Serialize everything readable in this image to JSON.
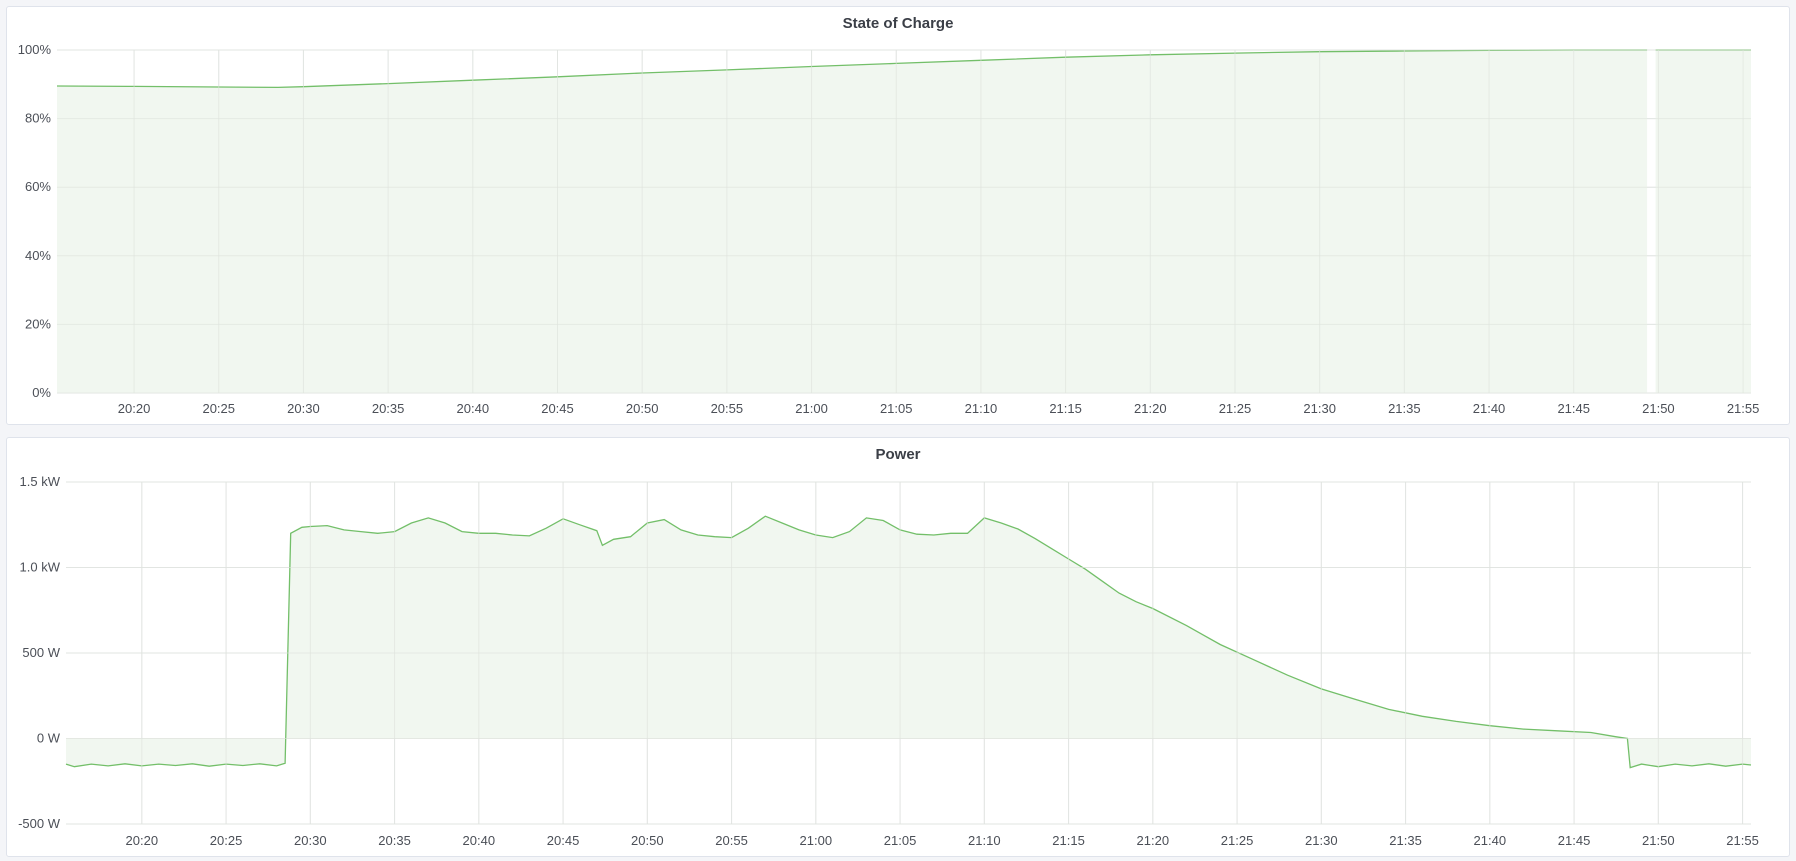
{
  "chart_data": [
    {
      "type": "area",
      "title": "State of Charge",
      "xlabel": "",
      "ylabel": "",
      "x_ticks": [
        "20:20",
        "20:25",
        "20:30",
        "20:35",
        "20:40",
        "20:45",
        "20:50",
        "20:55",
        "21:00",
        "21:05",
        "21:10",
        "21:15",
        "21:20",
        "21:25",
        "21:30",
        "21:35",
        "21:40",
        "21:45",
        "21:50",
        "21:55"
      ],
      "y_ticks": [
        {
          "v": 0,
          "label": "0%"
        },
        {
          "v": 20,
          "label": "20%"
        },
        {
          "v": 40,
          "label": "40%"
        },
        {
          "v": 60,
          "label": "60%"
        },
        {
          "v": 80,
          "label": "80%"
        },
        {
          "v": 100,
          "label": "100%"
        }
      ],
      "xlim": [
        "20:15:27",
        "21:55:28"
      ],
      "ylim": [
        0,
        100
      ],
      "grid": true,
      "color": "#73bf69",
      "fill": "#f0f6ee",
      "series": [
        {
          "points": [
            [
              "20:15:27",
              89.5
            ],
            [
              "20:20:00",
              89.4
            ],
            [
              "20:25:00",
              89.2
            ],
            [
              "20:28:30",
              89.1
            ],
            [
              "20:30:00",
              89.3
            ],
            [
              "20:35:00",
              90.2
            ],
            [
              "20:40:00",
              91.2
            ],
            [
              "20:45:00",
              92.2
            ],
            [
              "20:50:00",
              93.3
            ],
            [
              "20:55:00",
              94.2
            ],
            [
              "21:00:00",
              95.2
            ],
            [
              "21:05:00",
              96.1
            ],
            [
              "21:10:00",
              97.0
            ],
            [
              "21:15:00",
              97.9
            ],
            [
              "21:20:00",
              98.6
            ],
            [
              "21:25:00",
              99.1
            ],
            [
              "21:30:00",
              99.5
            ],
            [
              "21:35:00",
              99.7
            ],
            [
              "21:40:00",
              99.9
            ],
            [
              "21:45:00",
              100
            ],
            [
              "21:49:20",
              100
            ],
            null,
            [
              "21:49:50",
              100
            ],
            [
              "21:55:28",
              100
            ]
          ]
        }
      ]
    },
    {
      "type": "area",
      "title": "Power",
      "xlabel": "",
      "ylabel": "",
      "x_ticks": [
        "20:20",
        "20:25",
        "20:30",
        "20:35",
        "20:40",
        "20:45",
        "20:50",
        "20:55",
        "21:00",
        "21:05",
        "21:10",
        "21:15",
        "21:20",
        "21:25",
        "21:30",
        "21:35",
        "21:40",
        "21:45",
        "21:50",
        "21:55"
      ],
      "y_ticks": [
        {
          "v": -500,
          "label": "-500 W"
        },
        {
          "v": 0,
          "label": "0 W"
        },
        {
          "v": 500,
          "label": "500 W"
        },
        {
          "v": 1000,
          "label": "1.0 kW"
        },
        {
          "v": 1500,
          "label": "1.5 kW"
        }
      ],
      "xlim": [
        "20:15:30",
        "21:55:30"
      ],
      "ylim": [
        -500,
        1500
      ],
      "grid": true,
      "color": "#73bf69",
      "fill": "#f0f6ee",
      "series": [
        {
          "points": [
            [
              "20:15:30",
              -150
            ],
            [
              "20:16:00",
              -165
            ],
            [
              "20:17:00",
              -150
            ],
            [
              "20:18:00",
              -160
            ],
            [
              "20:19:00",
              -148
            ],
            [
              "20:20:00",
              -160
            ],
            [
              "20:21:00",
              -150
            ],
            [
              "20:22:00",
              -158
            ],
            [
              "20:23:00",
              -148
            ],
            [
              "20:24:00",
              -162
            ],
            [
              "20:25:00",
              -150
            ],
            [
              "20:26:00",
              -158
            ],
            [
              "20:27:00",
              -148
            ],
            [
              "20:28:00",
              -160
            ],
            [
              "20:28:30",
              -145
            ],
            [
              "20:28:50",
              1200
            ],
            [
              "20:29:30",
              1235
            ],
            [
              "20:30:00",
              1240
            ],
            [
              "20:31:00",
              1245
            ],
            [
              "20:32:00",
              1220
            ],
            [
              "20:33:00",
              1210
            ],
            [
              "20:34:00",
              1200
            ],
            [
              "20:35:00",
              1210
            ],
            [
              "20:36:00",
              1260
            ],
            [
              "20:37:00",
              1290
            ],
            [
              "20:38:00",
              1260
            ],
            [
              "20:39:00",
              1210
            ],
            [
              "20:40:00",
              1200
            ],
            [
              "20:41:00",
              1200
            ],
            [
              "20:42:00",
              1190
            ],
            [
              "20:43:00",
              1185
            ],
            [
              "20:44:00",
              1230
            ],
            [
              "20:45:00",
              1285
            ],
            [
              "20:46:00",
              1250
            ],
            [
              "20:47:00",
              1215
            ],
            [
              "20:47:20",
              1130
            ],
            [
              "20:48:00",
              1165
            ],
            [
              "20:49:00",
              1180
            ],
            [
              "20:50:00",
              1260
            ],
            [
              "20:51:00",
              1280
            ],
            [
              "20:52:00",
              1220
            ],
            [
              "20:53:00",
              1190
            ],
            [
              "20:54:00",
              1180
            ],
            [
              "20:55:00",
              1175
            ],
            [
              "20:56:00",
              1230
            ],
            [
              "20:57:00",
              1300
            ],
            [
              "20:58:00",
              1260
            ],
            [
              "20:59:00",
              1220
            ],
            [
              "21:00:00",
              1190
            ],
            [
              "21:01:00",
              1175
            ],
            [
              "21:02:00",
              1210
            ],
            [
              "21:03:00",
              1290
            ],
            [
              "21:04:00",
              1275
            ],
            [
              "21:05:00",
              1220
            ],
            [
              "21:06:00",
              1195
            ],
            [
              "21:07:00",
              1190
            ],
            [
              "21:08:00",
              1200
            ],
            [
              "21:09:00",
              1200
            ],
            [
              "21:10:00",
              1290
            ],
            [
              "21:11:00",
              1260
            ],
            [
              "21:12:00",
              1225
            ],
            [
              "21:13:00",
              1170
            ],
            [
              "21:14:00",
              1110
            ],
            [
              "21:15:00",
              1050
            ],
            [
              "21:16:00",
              990
            ],
            [
              "21:17:00",
              920
            ],
            [
              "21:18:00",
              850
            ],
            [
              "21:19:00",
              800
            ],
            [
              "21:20:00",
              760
            ],
            [
              "21:22:00",
              660
            ],
            [
              "21:24:00",
              550
            ],
            [
              "21:26:00",
              460
            ],
            [
              "21:28:00",
              370
            ],
            [
              "21:30:00",
              290
            ],
            [
              "21:32:00",
              230
            ],
            [
              "21:34:00",
              170
            ],
            [
              "21:36:00",
              130
            ],
            [
              "21:38:00",
              100
            ],
            [
              "21:40:00",
              75
            ],
            [
              "21:42:00",
              55
            ],
            [
              "21:44:00",
              45
            ],
            [
              "21:46:00",
              35
            ],
            [
              "21:47:30",
              10
            ],
            [
              "21:48:10",
              0
            ],
            [
              "21:48:20",
              -170
            ],
            [
              "21:49:00",
              -150
            ],
            [
              "21:50:00",
              -165
            ],
            [
              "21:51:00",
              -150
            ],
            [
              "21:52:00",
              -160
            ],
            [
              "21:53:00",
              -148
            ],
            [
              "21:54:00",
              -162
            ],
            [
              "21:55:00",
              -150
            ],
            [
              "21:55:30",
              -155
            ]
          ]
        }
      ]
    }
  ]
}
